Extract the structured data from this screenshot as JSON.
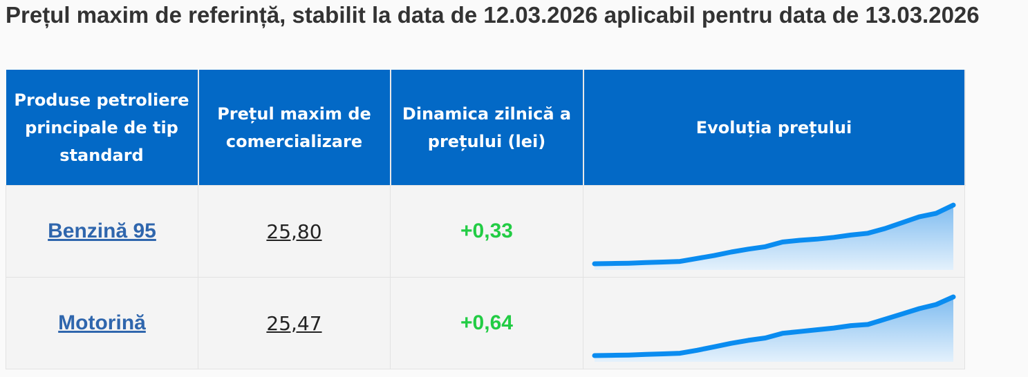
{
  "title": "Prețul maxim de referință, stabilit la data de 12.03.2026 aplicabil pentru data de 13.03.2026",
  "table": {
    "headers": [
      "Produse petroliere principale de tip standard",
      "Prețul maxim de comercializare",
      "Dinamica zilnică a prețului (lei)",
      "Evoluția prețului"
    ],
    "rows": [
      {
        "product": "Benzină 95",
        "price": "25,80",
        "change": "+0,33",
        "evolution": [
          0,
          0.5,
          1,
          2,
          3,
          4,
          9,
          14,
          20,
          25,
          29,
          37,
          40,
          42,
          45,
          49,
          52,
          60,
          70,
          80,
          86,
          100
        ]
      },
      {
        "product": "Motorină",
        "price": "25,47",
        "change": "+0,64",
        "evolution": [
          0,
          0.5,
          1,
          2,
          3,
          4,
          9,
          15,
          21,
          26,
          30,
          38,
          41,
          44,
          47,
          51,
          53,
          62,
          71,
          80,
          87,
          100
        ]
      }
    ]
  }
}
